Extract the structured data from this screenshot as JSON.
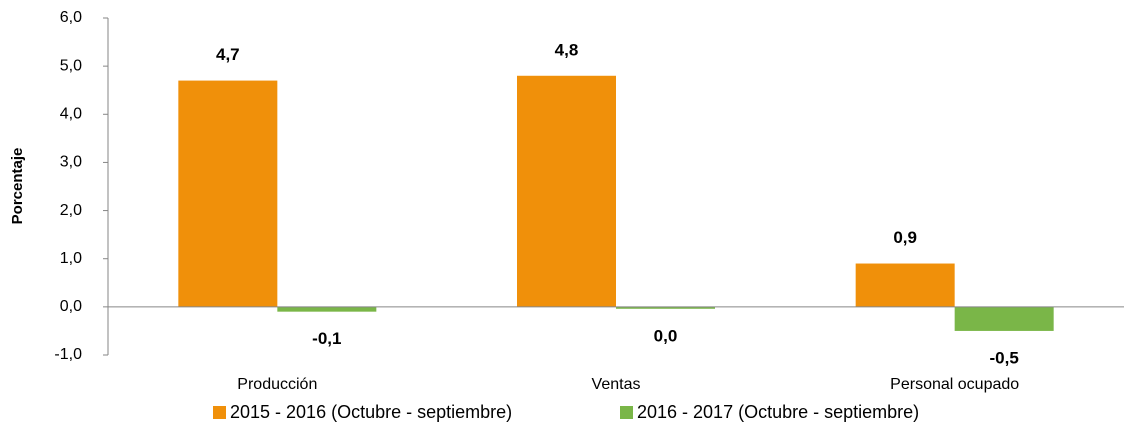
{
  "chart_data": {
    "type": "bar",
    "y_label": "Porcentaje",
    "categories": [
      "Producción",
      "Ventas",
      "Personal ocupado"
    ],
    "series": [
      {
        "name": "2015 - 2016 (Octubre - septiembre)",
        "color": "#f0900a",
        "values": [
          4.7,
          4.8,
          0.9
        ],
        "value_labels": [
          "4,7",
          "4,8",
          "0,9"
        ]
      },
      {
        "name": "2016 - 2017 (Octubre - septiembre)",
        "color": "#7ab648",
        "values": [
          -0.1,
          -0.04,
          -0.5
        ],
        "value_labels": [
          "-0,1",
          "0,0",
          "-0,5"
        ]
      }
    ],
    "ylim": [
      -1,
      6
    ],
    "yticks": [
      {
        "value": -1,
        "label": "-1,0"
      },
      {
        "value": 0,
        "label": "0,0"
      },
      {
        "value": 1,
        "label": "1,0"
      },
      {
        "value": 2,
        "label": "2,0"
      },
      {
        "value": 3,
        "label": "3,0"
      },
      {
        "value": 4,
        "label": "4,0"
      },
      {
        "value": 5,
        "label": "5,0"
      },
      {
        "value": 6,
        "label": "6,0"
      }
    ],
    "grid": false,
    "legend": "bottom"
  }
}
